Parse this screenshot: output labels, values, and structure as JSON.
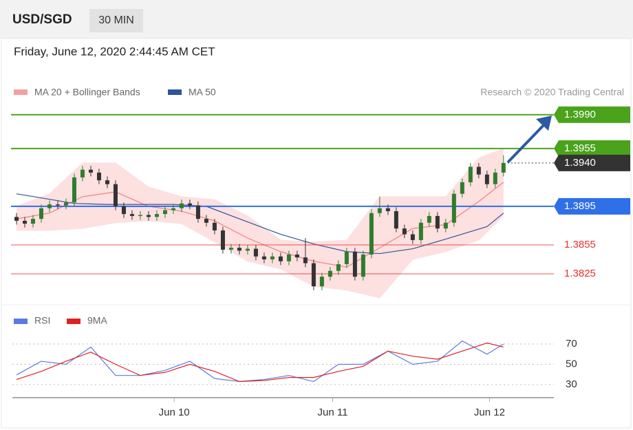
{
  "chart_data": {
    "type": "candlestick",
    "symbol": "USD/SGD",
    "interval": "30 MIN",
    "subtitle": "Friday, June 12, 2020 2:44:45 AM CET",
    "credit": "Research © 2020 Trading Central",
    "up_color": "#2e7d2e",
    "down_color": "#333333",
    "xlim": [
      -0.5,
      65.1
    ],
    "xticks": [
      {
        "value": 19.1,
        "label": "Jun 10"
      },
      {
        "value": 38.3,
        "label": "Jun 11"
      },
      {
        "value": 57.3,
        "label": "Jun 12"
      }
    ],
    "ylim": [
      1.3795,
      1.4002
    ],
    "open": [
      1.3884,
      1.388,
      1.3877,
      1.3882,
      1.3893,
      1.3897,
      1.3896,
      1.3899,
      1.3925,
      1.3933,
      1.393,
      1.3922,
      1.3918,
      1.3895,
      1.3887,
      1.3885,
      1.3886,
      1.3884,
      1.3887,
      1.3891,
      1.3893,
      1.3898,
      1.3896,
      1.3882,
      1.3878,
      1.387,
      1.385,
      1.3852,
      1.3849,
      1.3851,
      1.3843,
      1.384,
      1.3843,
      1.3838,
      1.3845,
      1.3842,
      1.3836,
      1.3812,
      1.3822,
      1.3828,
      1.3835,
      1.3848,
      1.3822,
      1.3845,
      1.3888,
      1.3893,
      1.389,
      1.3872,
      1.3866,
      1.386,
      1.3878,
      1.3885,
      1.3872,
      1.3878,
      1.3908,
      1.392,
      1.3936,
      1.3928,
      1.3918,
      1.393
    ],
    "high": [
      1.3888,
      1.3884,
      1.3886,
      1.3897,
      1.3901,
      1.3901,
      1.3903,
      1.3929,
      1.3937,
      1.3937,
      1.3934,
      1.3926,
      1.3922,
      1.3899,
      1.3891,
      1.389,
      1.389,
      1.3891,
      1.3895,
      1.3897,
      1.3902,
      1.3902,
      1.39,
      1.3886,
      1.3882,
      1.3874,
      1.3856,
      1.3856,
      1.3855,
      1.3855,
      1.3847,
      1.3847,
      1.3847,
      1.3849,
      1.3849,
      1.3862,
      1.384,
      1.3826,
      1.3832,
      1.3839,
      1.3852,
      1.3852,
      1.3849,
      1.3892,
      1.3905,
      1.3897,
      1.3894,
      1.3876,
      1.387,
      1.3882,
      1.3889,
      1.3889,
      1.3882,
      1.3912,
      1.3924,
      1.394,
      1.394,
      1.3932,
      1.3934,
      1.3948
    ],
    "low": [
      1.3876,
      1.3873,
      1.3873,
      1.3878,
      1.3889,
      1.3892,
      1.3892,
      1.3895,
      1.3921,
      1.3926,
      1.3918,
      1.3914,
      1.3891,
      1.3883,
      1.3881,
      1.3881,
      1.388,
      1.388,
      1.3883,
      1.3887,
      1.3889,
      1.3892,
      1.3878,
      1.3874,
      1.3866,
      1.3846,
      1.3846,
      1.3845,
      1.3845,
      1.3839,
      1.3836,
      1.3836,
      1.3834,
      1.3834,
      1.3838,
      1.3832,
      1.3808,
      1.3808,
      1.3818,
      1.3824,
      1.3831,
      1.3818,
      1.3818,
      1.3841,
      1.3884,
      1.3886,
      1.3868,
      1.3862,
      1.3856,
      1.3856,
      1.3874,
      1.3868,
      1.3868,
      1.3874,
      1.3904,
      1.3916,
      1.3924,
      1.3914,
      1.3914,
      1.3926
    ],
    "close": [
      1.388,
      1.3877,
      1.3882,
      1.3893,
      1.3897,
      1.3896,
      1.3899,
      1.3925,
      1.3933,
      1.393,
      1.3922,
      1.3918,
      1.3895,
      1.3887,
      1.3885,
      1.3886,
      1.3884,
      1.3887,
      1.3891,
      1.3893,
      1.3898,
      1.3896,
      1.3882,
      1.3878,
      1.387,
      1.385,
      1.3852,
      1.3849,
      1.3851,
      1.3843,
      1.384,
      1.3843,
      1.3838,
      1.3845,
      1.3842,
      1.3836,
      1.3812,
      1.3822,
      1.3828,
      1.3835,
      1.3848,
      1.3822,
      1.3845,
      1.3888,
      1.3893,
      1.389,
      1.3872,
      1.3866,
      1.386,
      1.3878,
      1.3885,
      1.3872,
      1.3878,
      1.3908,
      1.392,
      1.3936,
      1.3928,
      1.3918,
      1.393,
      1.394
    ],
    "bollinger": {
      "name": "MA 20 + Bollinger Bands",
      "color": "#f08080",
      "band_color": "#fde0e0",
      "x": [
        0,
        4,
        8,
        12,
        16,
        20,
        24,
        28,
        32,
        36,
        40,
        44,
        48,
        52,
        56,
        59
      ],
      "middle": [
        1.3882,
        1.3888,
        1.3905,
        1.391,
        1.3895,
        1.389,
        1.388,
        1.3862,
        1.3848,
        1.3838,
        1.3832,
        1.3852,
        1.3872,
        1.3876,
        1.39,
        1.392
      ],
      "upper": [
        1.3895,
        1.3908,
        1.394,
        1.394,
        1.3915,
        1.3905,
        1.3902,
        1.3885,
        1.386,
        1.3858,
        1.386,
        1.3905,
        1.3905,
        1.3905,
        1.3945,
        1.3955
      ],
      "lower": [
        1.387,
        1.387,
        1.3872,
        1.3878,
        1.388,
        1.3877,
        1.3858,
        1.3838,
        1.383,
        1.3812,
        1.3808,
        1.38,
        1.384,
        1.3848,
        1.386,
        1.3885
      ]
    },
    "ma50": {
      "name": "MA 50",
      "color": "#2d5597",
      "x": [
        0,
        7,
        11,
        19,
        23,
        27,
        32,
        36,
        40,
        44,
        48,
        52,
        57,
        59
      ],
      "values": [
        1.3908,
        1.3898,
        1.3897,
        1.3897,
        1.3895,
        1.3882,
        1.3866,
        1.3856,
        1.3848,
        1.3846,
        1.3851,
        1.3861,
        1.3874,
        1.3888
      ]
    },
    "levels": [
      {
        "value": 1.399,
        "label": "1.3990",
        "color": "#4aa31a",
        "tag": true
      },
      {
        "value": 1.3955,
        "color": "#4aa31a",
        "tag": true
      },
      {
        "value": 1.394,
        "label": "1.3940",
        "color": "#333333",
        "tag": true,
        "dotted": true
      },
      {
        "value": 1.3895,
        "color": "#2f6fe8",
        "tag": true
      },
      {
        "value": 1.3855,
        "color": "#e83030",
        "tag": false
      },
      {
        "value": 1.3825,
        "color": "#e83030",
        "tag": false
      }
    ],
    "rsi": {
      "ylim": [
        22.5,
        83.6
      ],
      "yticks": [
        30,
        50,
        70
      ],
      "x": [
        0,
        3,
        6,
        9,
        12,
        15,
        18,
        21,
        24,
        27,
        30,
        33,
        36,
        39,
        42,
        45,
        48,
        51,
        54,
        57,
        59
      ],
      "series": [
        {
          "name": "RSI",
          "color": "#5b7be0",
          "values": [
            39.5,
            53,
            50,
            67,
            39,
            39,
            44,
            53,
            36,
            33,
            35,
            39,
            33,
            50,
            50,
            63,
            50,
            53,
            73,
            60,
            70
          ]
        },
        {
          "name": "9MA",
          "color": "#e02020",
          "values": [
            35,
            43,
            53,
            62,
            50,
            39,
            42,
            50,
            43,
            33,
            34,
            37,
            37,
            43,
            48,
            63,
            58,
            55,
            63,
            71,
            67
          ]
        }
      ]
    }
  }
}
